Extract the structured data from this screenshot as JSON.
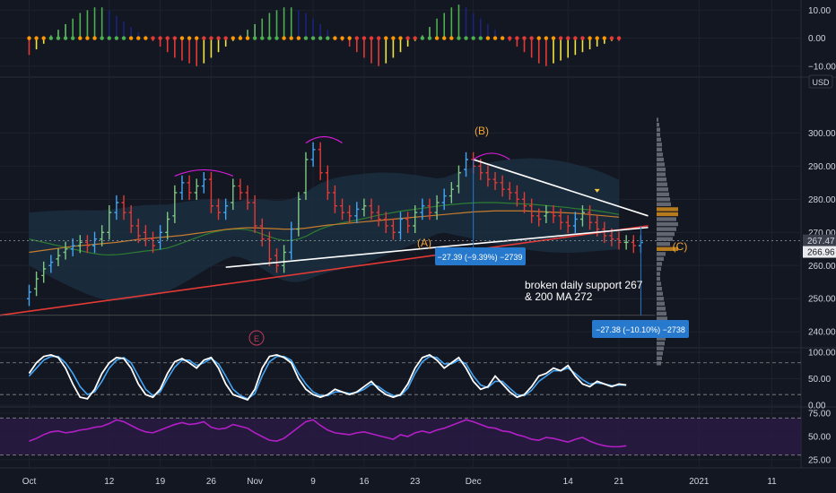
{
  "chart_data": {
    "type": "candlestick",
    "currency_label": "USD",
    "x_axis": {
      "ticks": [
        {
          "label": "Oct",
          "day": 0
        },
        {
          "label": "12",
          "day": 11
        },
        {
          "label": "19",
          "day": 18
        },
        {
          "label": "26",
          "day": 25
        },
        {
          "label": "Nov",
          "day": 31
        },
        {
          "label": "9",
          "day": 39
        },
        {
          "label": "16",
          "day": 46
        },
        {
          "label": "23",
          "day": 53
        },
        {
          "label": "Dec",
          "day": 61
        },
        {
          "label": "14",
          "day": 74
        },
        {
          "label": "21",
          "day": 81
        },
        {
          "label": "2021",
          "day": 92
        },
        {
          "label": "11",
          "day": 102
        }
      ],
      "range_days": [
        -4,
        106
      ]
    },
    "panels": {
      "momentum": {
        "ticks": [
          "10.00",
          "0.00",
          "−10.00"
        ],
        "tick_values": [
          10,
          0,
          -10
        ],
        "ylim": [
          -12,
          13
        ],
        "values": [
          -6,
          -4,
          -2,
          1,
          3,
          5,
          7,
          9,
          10,
          11,
          11,
          10,
          8,
          6,
          4,
          2,
          1,
          -1,
          -3,
          -5,
          -7,
          -8,
          -9,
          -10,
          -9,
          -7,
          -5,
          -3,
          -1,
          1,
          3,
          5,
          7,
          9,
          10,
          11,
          11,
          10,
          9,
          7,
          5,
          3,
          1,
          -1,
          -3,
          -5,
          -7,
          -9,
          -10,
          -9,
          -7,
          -5,
          -3,
          -1,
          1,
          4,
          7,
          9,
          11,
          12,
          11,
          9,
          7,
          5,
          3,
          1,
          -1,
          -3,
          -5,
          -7,
          -9,
          -10,
          -9,
          -8,
          -7,
          -6,
          -5,
          -4,
          -3,
          -2,
          -1,
          -1
        ]
      },
      "price": {
        "ticks": [
          "300.00",
          "290.00",
          "280.00",
          "270.00",
          "260.00",
          "250.00",
          "240.00"
        ],
        "tick_values": [
          300,
          290,
          280,
          270,
          260,
          250,
          240
        ],
        "ylim": [
          236,
          312
        ],
        "last_price_label": "266.96",
        "prior_close_label": "267.47",
        "last_price": 266.96,
        "prior_close": 267.47,
        "closes": [
          252,
          256,
          259,
          261,
          263,
          265,
          266,
          267,
          266,
          268,
          270,
          276,
          279,
          276,
          272,
          269,
          268,
          266,
          270,
          274,
          282,
          285,
          282,
          284,
          286,
          278,
          276,
          278,
          284,
          282,
          279,
          272,
          268,
          262,
          260,
          264,
          271,
          280,
          292,
          295,
          288,
          282,
          278,
          276,
          275,
          277,
          278,
          276,
          274,
          272,
          270,
          274,
          272,
          276,
          278,
          276,
          279,
          281,
          283,
          288,
          292,
          290,
          288,
          286,
          285,
          283,
          282,
          280,
          278,
          275,
          274,
          276,
          275,
          273,
          272,
          274,
          276,
          273,
          271,
          269,
          268,
          267,
          267,
          266,
          266.96
        ],
        "opens": [
          250,
          253,
          257,
          260,
          262,
          264,
          265,
          266,
          267,
          266,
          268,
          270,
          276,
          279,
          276,
          272,
          270,
          268,
          267,
          270,
          275,
          282,
          285,
          282,
          284,
          286,
          278,
          276,
          279,
          284,
          282,
          279,
          272,
          268,
          263,
          260,
          264,
          271,
          282,
          292,
          295,
          288,
          282,
          278,
          276,
          275,
          277,
          278,
          276,
          274,
          272,
          270,
          274,
          272,
          276,
          278,
          276,
          279,
          281,
          284,
          289,
          292,
          290,
          288,
          286,
          285,
          283,
          282,
          280,
          278,
          275,
          275,
          276,
          275,
          273,
          272,
          274,
          276,
          273,
          271,
          269,
          268,
          267,
          267,
          266
        ],
        "ma_green": [
          268,
          267.5,
          267,
          266.5,
          266,
          265.5,
          265,
          264.5,
          264,
          263.6,
          263.3,
          263.2,
          263.3,
          263.5,
          263.8,
          264.1,
          264.4,
          264.6,
          264.9,
          265.3,
          266,
          266.8,
          267.6,
          268.4,
          269.2,
          269.9,
          270.4,
          270.8,
          271,
          271,
          270.8,
          270.3,
          269.5,
          268.7,
          268,
          267.6,
          267.6,
          268,
          268.8,
          270,
          271,
          271.8,
          272.4,
          272.9,
          273.3,
          273.7,
          274.2,
          274.7,
          275.2,
          275.6,
          276,
          276.4,
          276.7,
          277,
          277.3,
          277.6,
          277.9,
          278.2,
          278.4,
          278.6,
          278.8,
          278.9,
          279,
          279,
          279,
          278.9,
          278.8,
          278.7,
          278.6,
          278.5,
          278.3,
          278.1,
          277.9,
          277.7,
          277.5,
          277.2,
          277,
          276.8,
          276.5,
          276.2,
          275.8,
          275.4
        ],
        "ma_orange": [
          264,
          264.3,
          264.6,
          264.9,
          265.2,
          265.5,
          265.8,
          266,
          266.2,
          266.4,
          266.6,
          266.8,
          267,
          267.3,
          267.6,
          267.9,
          268.1,
          268.3,
          268.5,
          268.7,
          268.9,
          269.1,
          269.4,
          269.7,
          270,
          270.3,
          270.6,
          270.9,
          271.1,
          271.3,
          271.4,
          271.4,
          271.3,
          271.2,
          271.1,
          271,
          271,
          271.1,
          271.3,
          271.6,
          271.9,
          272.2,
          272.4,
          272.6,
          272.8,
          273,
          273.2,
          273.4,
          273.6,
          273.8,
          274,
          274.2,
          274.4,
          274.6,
          274.8,
          275,
          275.2,
          275.4,
          275.6,
          275.8,
          276,
          276.2,
          276.3,
          276.4,
          276.5,
          276.5,
          276.5,
          276.5,
          276.5,
          276.4,
          276.3,
          276.2,
          276.1,
          276,
          275.9,
          275.8,
          275.6,
          275.4,
          275.2,
          275,
          274.8,
          274.6
        ],
        "support_line": [
          [
            -4,
            245
          ],
          [
            85,
            272
          ]
        ],
        "upper_trendline": [
          [
            61,
            292
          ],
          [
            85,
            275
          ]
        ],
        "lower_trendline": [
          [
            27,
            259.5
          ],
          [
            85,
            271.5
          ]
        ],
        "annotations": {
          "wave_b": "(B)",
          "wave_a": "(A)",
          "wave_c": "(C)",
          "measure_1": "−27.39 (−9.39%) −2739",
          "measure_2": "−27.38 (−10.10%) −2738",
          "note_line1": "broken daily support 267",
          "note_line2": "& 200 MA 272",
          "earnings_marker": "E"
        }
      },
      "stochastic": {
        "ticks": [
          "100.00",
          "50.00",
          "0.00"
        ],
        "tick_values": [
          100,
          50,
          0
        ],
        "ylim": [
          0,
          105
        ],
        "levels": [
          80,
          20
        ],
        "k": [
          60,
          80,
          92,
          95,
          90,
          70,
          40,
          15,
          12,
          30,
          60,
          80,
          90,
          88,
          70,
          40,
          20,
          15,
          30,
          60,
          82,
          88,
          80,
          70,
          85,
          90,
          70,
          40,
          20,
          15,
          10,
          30,
          70,
          92,
          95,
          90,
          80,
          50,
          30,
          20,
          15,
          20,
          30,
          25,
          20,
          25,
          35,
          45,
          30,
          20,
          15,
          20,
          40,
          70,
          90,
          95,
          85,
          70,
          80,
          90,
          70,
          45,
          30,
          35,
          55,
          40,
          25,
          15,
          20,
          35,
          55,
          60,
          70,
          65,
          75,
          55,
          40,
          35,
          45,
          40,
          35,
          40,
          38
        ],
        "d": [
          55,
          70,
          85,
          92,
          92,
          80,
          60,
          35,
          20,
          25,
          45,
          70,
          85,
          90,
          80,
          55,
          30,
          18,
          25,
          50,
          72,
          85,
          85,
          75,
          80,
          88,
          78,
          55,
          30,
          18,
          12,
          22,
          55,
          82,
          92,
          92,
          85,
          60,
          40,
          25,
          18,
          18,
          25,
          25,
          22,
          24,
          30,
          40,
          35,
          25,
          18,
          18,
          32,
          60,
          82,
          92,
          90,
          78,
          78,
          85,
          78,
          55,
          38,
          33,
          45,
          45,
          32,
          20,
          18,
          28,
          45,
          55,
          65,
          65,
          70,
          60,
          48,
          40,
          42,
          40,
          37,
          38,
          38
        ]
      },
      "rsi": {
        "ticks": [
          "75.00",
          "50.00",
          "25.00"
        ],
        "tick_values": [
          75,
          50,
          25
        ],
        "ylim": [
          20,
          80
        ],
        "levels": [
          70,
          30
        ],
        "values": [
          45,
          48,
          52,
          55,
          56,
          54,
          55,
          57,
          58,
          60,
          61,
          64,
          68,
          66,
          62,
          58,
          55,
          54,
          57,
          60,
          63,
          65,
          63,
          64,
          66,
          60,
          58,
          59,
          63,
          61,
          59,
          54,
          50,
          46,
          45,
          48,
          54,
          60,
          66,
          68,
          62,
          57,
          54,
          53,
          52,
          54,
          55,
          53,
          51,
          49,
          47,
          52,
          50,
          54,
          56,
          54,
          57,
          59,
          62,
          65,
          68,
          66,
          63,
          60,
          59,
          56,
          55,
          52,
          50,
          47,
          46,
          49,
          48,
          46,
          44,
          47,
          49,
          45,
          42,
          40,
          39,
          39,
          40
        ]
      },
      "volume_profile": {
        "top_price": 304,
        "bottom_price": 246,
        "row_step": 1.5,
        "poc_prices": [
          276.5,
          275,
          265
        ],
        "widths": [
          2,
          3,
          4,
          4,
          5,
          6,
          6,
          7,
          8,
          9,
          10,
          10,
          11,
          12,
          13,
          14,
          15,
          16,
          17,
          19,
          22,
          24,
          22,
          20,
          18,
          15,
          12,
          10,
          8,
          6,
          5,
          4,
          4,
          5,
          6,
          7,
          8,
          9,
          10,
          11,
          12,
          13,
          12,
          11,
          10,
          9,
          8,
          7,
          6,
          5
        ]
      }
    }
  }
}
